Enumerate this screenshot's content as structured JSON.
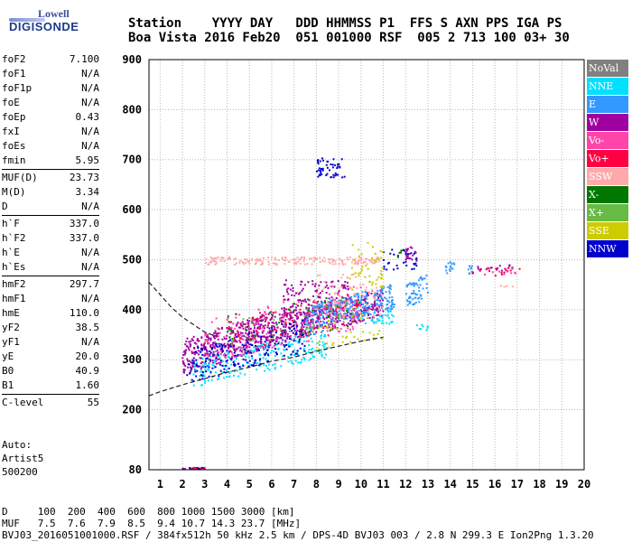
{
  "logo": {
    "line1": "Lowell",
    "line2": "DIGISONDE"
  },
  "header": {
    "line1": "Station    YYYY DAY   DDD HHMMSS P1  FFS S AXN PPS IGA PS",
    "line2": "Boa Vista 2016 Feb20  051 001000 RSF  005 2 713 100 03+ 30"
  },
  "params": [
    [
      {
        "k": "foF2",
        "v": "7.100"
      },
      {
        "k": "foF1",
        "v": "N/A"
      },
      {
        "k": "foF1p",
        "v": "N/A"
      },
      {
        "k": "foE",
        "v": "N/A"
      },
      {
        "k": "foEp",
        "v": "0.43"
      },
      {
        "k": "fxI",
        "v": "N/A"
      },
      {
        "k": "foEs",
        "v": "N/A"
      },
      {
        "k": "fmin",
        "v": "5.95"
      }
    ],
    [
      {
        "k": "MUF(D)",
        "v": "23.73"
      },
      {
        "k": "M(D)",
        "v": "3.34"
      },
      {
        "k": "D",
        "v": "N/A"
      }
    ],
    [
      {
        "k": "h`F",
        "v": "337.0"
      },
      {
        "k": "h`F2",
        "v": "337.0"
      },
      {
        "k": "h`E",
        "v": "N/A"
      },
      {
        "k": "h`Es",
        "v": "N/A"
      }
    ],
    [
      {
        "k": "hmF2",
        "v": "297.7"
      },
      {
        "k": "hmF1",
        "v": "N/A"
      },
      {
        "k": "hmE",
        "v": "110.0"
      },
      {
        "k": "yF2",
        "v": "38.5"
      },
      {
        "k": "yF1",
        "v": "N/A"
      },
      {
        "k": "yE",
        "v": "20.0"
      },
      {
        "k": "B0",
        "v": "40.9"
      },
      {
        "k": "B1",
        "v": "1.60"
      }
    ],
    [
      {
        "k": "C-level",
        "v": "55"
      }
    ]
  ],
  "auto": {
    "line1": "Auto:",
    "line2": "Artist5",
    "line3": "500200"
  },
  "footer": {
    "line1": "D     100  200  400  600  800 1000 1500 3000 [km]",
    "line2": "MUF   7.5  7.6  7.9  8.5  9.4 10.7 14.3 23.7 [MHz]",
    "line3": "BVJ03_2016051001000.RSF / 384fx512h 50 kHz 2.5 km / DPS-4D BVJ03 003 / 2.8 N 299.3 E Ion2Png 1.3.20"
  },
  "legend": [
    {
      "label": "NoVal",
      "color": "#808080"
    },
    {
      "label": "NNE",
      "color": "#00e0ff"
    },
    {
      "label": "E",
      "color": "#3399ff"
    },
    {
      "label": "W",
      "color": "#a000a0"
    },
    {
      "label": "Vo-",
      "color": "#ff44aa"
    },
    {
      "label": "Vo+",
      "color": "#ff0044"
    },
    {
      "label": "SSW",
      "color": "#ffaaaa"
    },
    {
      "label": "X-",
      "color": "#007700"
    },
    {
      "label": "X+",
      "color": "#66bb44"
    },
    {
      "label": "SSE",
      "color": "#cccc00"
    },
    {
      "label": "NNW",
      "color": "#0000cc"
    }
  ],
  "chart_data": {
    "type": "scatter",
    "xlabel": "",
    "ylabel": "",
    "xlim": [
      0.5,
      20
    ],
    "ylim": [
      80,
      900
    ],
    "x_ticks": [
      "1",
      "2",
      "3",
      "4",
      "5",
      "6",
      "7",
      "8",
      "9",
      "10",
      "11",
      "12",
      "13",
      "14",
      "15",
      "16",
      "17",
      "18",
      "19",
      "20"
    ],
    "y_ticks": [
      "80",
      "200",
      "300",
      "400",
      "500",
      "600",
      "700",
      "800",
      "900"
    ],
    "y_tick_values": [
      80,
      200,
      300,
      400,
      500,
      600,
      700,
      800,
      900
    ],
    "grid": true,
    "legend_position": "right",
    "series": [
      {
        "name": "W",
        "color": "#a000a0",
        "clusters": [
          {
            "x": [
              2,
              7
            ],
            "y": [
              270,
              340
            ],
            "slope": 14,
            "n": 500
          },
          {
            "x": [
              7,
              11
            ],
            "y": [
              340,
              395
            ],
            "slope": 12,
            "n": 300
          },
          {
            "x": [
              6.5,
              9.5
            ],
            "y": [
              380,
              460
            ],
            "slope": 0,
            "n": 150
          },
          {
            "x": [
              12,
              12.5
            ],
            "y": [
              495,
              525
            ],
            "slope": 0,
            "n": 25
          },
          {
            "x": [
              15,
              17
            ],
            "y": [
              470,
              490
            ],
            "slope": 0,
            "n": 20
          }
        ]
      },
      {
        "name": "NNE",
        "color": "#00e0ff",
        "clusters": [
          {
            "x": [
              2.5,
              8.5
            ],
            "y": [
              245,
              300
            ],
            "slope": 10,
            "n": 240
          },
          {
            "x": [
              10,
              11.5
            ],
            "y": [
              370,
              400
            ],
            "slope": 0,
            "n": 40
          },
          {
            "x": [
              12.5,
              13
            ],
            "y": [
              355,
              370
            ],
            "slope": 0,
            "n": 8
          }
        ]
      },
      {
        "name": "E",
        "color": "#3399ff",
        "clusters": [
          {
            "x": [
              7.5,
              11.5
            ],
            "y": [
              355,
              405
            ],
            "slope": 12,
            "n": 300
          },
          {
            "x": [
              12,
              13
            ],
            "y": [
              400,
              450
            ],
            "slope": 25,
            "n": 60
          },
          {
            "x": [
              13.8,
              14.2
            ],
            "y": [
              470,
              495
            ],
            "slope": 0,
            "n": 15
          },
          {
            "x": [
              14.8,
              15
            ],
            "y": [
              470,
              490
            ],
            "slope": 0,
            "n": 10
          }
        ]
      },
      {
        "name": "NNW",
        "color": "#0000cc",
        "clusters": [
          {
            "x": [
              2.2,
              7.5
            ],
            "y": [
              250,
              320
            ],
            "slope": 12,
            "n": 220
          },
          {
            "x": [
              8,
              9.3
            ],
            "y": [
              660,
              705
            ],
            "slope": 0,
            "n": 50
          },
          {
            "x": [
              11,
              12.5
            ],
            "y": [
              480,
              520
            ],
            "slope": 0,
            "n": 30
          },
          {
            "x": [
              2,
              3
            ],
            "y": [
              81,
              84
            ],
            "slope": 0,
            "n": 20
          }
        ]
      },
      {
        "name": "Vo-",
        "color": "#ff44aa",
        "clusters": [
          {
            "x": [
              3,
              10
            ],
            "y": [
              290,
              380
            ],
            "slope": 10,
            "n": 180
          },
          {
            "x": [
              15.5,
              17
            ],
            "y": [
              470,
              485
            ],
            "slope": 0,
            "n": 12
          }
        ]
      },
      {
        "name": "Vo+",
        "color": "#ff0044",
        "clusters": [
          {
            "x": [
              4,
              10
            ],
            "y": [
              310,
              380
            ],
            "slope": 10,
            "n": 80
          },
          {
            "x": [
              15,
              17.5
            ],
            "y": [
              465,
              485
            ],
            "slope": 0,
            "n": 12
          },
          {
            "x": [
              2,
              3
            ],
            "y": [
              81,
              84
            ],
            "slope": 0,
            "n": 10
          }
        ]
      },
      {
        "name": "SSW",
        "color": "#ffaaaa",
        "clusters": [
          {
            "x": [
              3,
              11
            ],
            "y": [
              490,
              505
            ],
            "slope": 0,
            "n": 180
          },
          {
            "x": [
              8,
              11
            ],
            "y": [
              380,
              470
            ],
            "slope": 0,
            "n": 80
          },
          {
            "x": [
              16,
              17
            ],
            "y": [
              445,
              455
            ],
            "slope": 0,
            "n": 4
          }
        ]
      },
      {
        "name": "X-",
        "color": "#007700",
        "clusters": [
          {
            "x": [
              4,
              10
            ],
            "y": [
              320,
              390
            ],
            "slope": 8,
            "n": 50
          },
          {
            "x": [
              11.5,
              12
            ],
            "y": [
              500,
              520
            ],
            "slope": 0,
            "n": 5
          }
        ]
      },
      {
        "name": "X+",
        "color": "#66bb44",
        "clusters": [
          {
            "x": [
              4,
              10
            ],
            "y": [
              320,
              380
            ],
            "slope": 8,
            "n": 40
          }
        ]
      },
      {
        "name": "SSE",
        "color": "#cccc00",
        "clusters": [
          {
            "x": [
              8,
              11
            ],
            "y": [
              320,
              380
            ],
            "slope": 5,
            "n": 40
          },
          {
            "x": [
              9.5,
              11
            ],
            "y": [
              440,
              535
            ],
            "slope": 0,
            "n": 45
          }
        ]
      }
    ],
    "fit_curve": {
      "style": "dashed",
      "color": "#222222",
      "upper": [
        [
          0.5,
          455
        ],
        [
          1,
          430
        ],
        [
          1.5,
          405
        ],
        [
          2,
          385
        ],
        [
          2.5,
          370
        ],
        [
          3,
          355
        ],
        [
          3.5,
          347
        ]
      ],
      "lower": [
        [
          0.5,
          228
        ],
        [
          1,
          236
        ],
        [
          2,
          250
        ],
        [
          3,
          262
        ],
        [
          4,
          275
        ],
        [
          5,
          285
        ],
        [
          6,
          297
        ],
        [
          7,
          305
        ],
        [
          8,
          317
        ],
        [
          9,
          327
        ],
        [
          10,
          337
        ],
        [
          11,
          345
        ]
      ]
    }
  }
}
